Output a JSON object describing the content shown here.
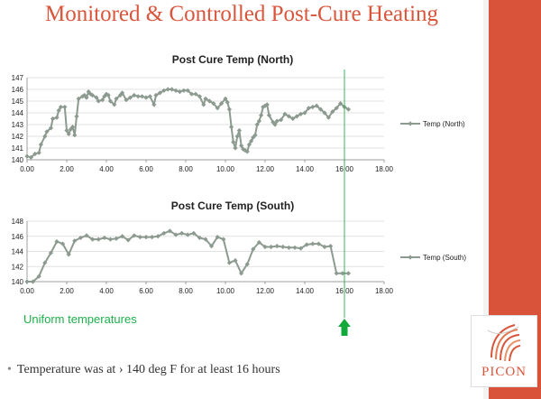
{
  "slide": {
    "title": "Monitored & Controlled Post-Cure Heating",
    "callout": "Uniform temperatures",
    "bullet": "Temperature was at › 140 deg F for at least 16 hours",
    "logo_text": "PICON",
    "accent_color": "#d9553b",
    "marker_line_color": "#1db04a",
    "marker_line_x": 16.0
  },
  "chart_data": [
    {
      "type": "line",
      "title": "Post Cure Temp (North)",
      "xlabel": "",
      "ylabel": "",
      "xlim": [
        0,
        18
      ],
      "ylim": [
        140,
        147
      ],
      "xticks": [
        "0.00",
        "2.00",
        "4.00",
        "6.00",
        "8.00",
        "10.00",
        "12.00",
        "14.00",
        "16.00",
        "18.00"
      ],
      "yticks": [
        "140",
        "141",
        "142",
        "143",
        "144",
        "145",
        "146",
        "147"
      ],
      "grid": true,
      "legend": "right",
      "series": [
        {
          "name": "Temp (North)",
          "color": "#8c9a8f",
          "x": [
            0.0,
            0.2,
            0.4,
            0.6,
            0.7,
            0.9,
            1.0,
            1.2,
            1.3,
            1.5,
            1.6,
            1.7,
            1.9,
            2.0,
            2.1,
            2.2,
            2.3,
            2.4,
            2.5,
            2.6,
            2.8,
            2.9,
            3.0,
            3.1,
            3.2,
            3.3,
            3.5,
            3.6,
            3.8,
            3.9,
            4.0,
            4.1,
            4.2,
            4.4,
            4.5,
            4.7,
            4.8,
            5.0,
            5.2,
            5.4,
            5.6,
            5.8,
            6.0,
            6.2,
            6.4,
            6.5,
            6.7,
            6.9,
            7.1,
            7.3,
            7.5,
            7.7,
            7.9,
            8.1,
            8.3,
            8.5,
            8.7,
            8.9,
            9.0,
            9.2,
            9.4,
            9.6,
            9.8,
            10.0,
            10.1,
            10.2,
            10.3,
            10.4,
            10.5,
            10.6,
            10.7,
            10.8,
            10.9,
            11.0,
            11.1,
            11.2,
            11.3,
            11.4,
            11.5,
            11.6,
            11.7,
            11.8,
            11.9,
            12.0,
            12.1,
            12.2,
            12.4,
            12.5,
            12.6,
            12.8,
            13.0,
            13.2,
            13.4,
            13.6,
            13.8,
            14.0,
            14.2,
            14.4,
            14.6,
            14.8,
            15.0,
            15.2,
            15.4,
            15.6,
            15.8,
            16.0,
            16.2
          ],
          "values": [
            140.3,
            140.2,
            140.5,
            140.6,
            141.3,
            142.0,
            142.4,
            142.7,
            143.5,
            143.6,
            144.2,
            144.5,
            144.5,
            142.5,
            142.2,
            142.6,
            142.8,
            142.1,
            143.7,
            145.2,
            145.4,
            145.5,
            145.3,
            145.8,
            145.6,
            145.5,
            145.3,
            145.0,
            145.1,
            145.4,
            145.6,
            145.5,
            145.0,
            144.7,
            145.2,
            145.5,
            145.7,
            145.1,
            145.3,
            145.5,
            145.4,
            145.4,
            145.3,
            145.4,
            144.7,
            145.5,
            145.7,
            145.9,
            146.0,
            146.0,
            145.9,
            145.8,
            145.9,
            145.9,
            145.6,
            145.6,
            145.4,
            144.7,
            145.2,
            145.0,
            144.8,
            144.4,
            144.8,
            145.2,
            144.9,
            144.3,
            142.8,
            141.5,
            141.0,
            142.0,
            142.5,
            141.2,
            140.9,
            140.8,
            140.7,
            141.3,
            141.6,
            141.9,
            142.1,
            143.0,
            143.3,
            143.8,
            144.5,
            144.6,
            144.7,
            143.8,
            143.2,
            143.0,
            143.3,
            143.4,
            143.9,
            143.7,
            143.5,
            143.7,
            143.9,
            144.0,
            144.4,
            144.5,
            144.6,
            144.3,
            144.0,
            143.6,
            144.1,
            144.4,
            144.8,
            144.5,
            144.3
          ]
        }
      ]
    },
    {
      "type": "line",
      "title": "Post Cure Temp (South)",
      "xlabel": "",
      "ylabel": "",
      "xlim": [
        0,
        18
      ],
      "ylim": [
        140,
        148
      ],
      "xticks": [
        "0.00",
        "2.00",
        "4.00",
        "6.00",
        "8.00",
        "10.00",
        "12.00",
        "14.00",
        "16.00",
        "18.00"
      ],
      "yticks": [
        "140",
        "142",
        "144",
        "146",
        "148"
      ],
      "grid": true,
      "legend": "right",
      "series": [
        {
          "name": "Temp (South)",
          "color": "#8c9a8f",
          "x": [
            0.0,
            0.3,
            0.6,
            0.9,
            1.2,
            1.5,
            1.8,
            2.1,
            2.4,
            2.7,
            3.0,
            3.3,
            3.6,
            3.9,
            4.2,
            4.5,
            4.8,
            5.1,
            5.4,
            5.7,
            6.0,
            6.3,
            6.6,
            6.9,
            7.2,
            7.5,
            7.8,
            8.1,
            8.4,
            8.7,
            9.0,
            9.3,
            9.6,
            9.9,
            10.2,
            10.5,
            10.8,
            11.1,
            11.4,
            11.7,
            12.0,
            12.3,
            12.6,
            12.9,
            13.2,
            13.5,
            13.8,
            14.1,
            14.4,
            14.7,
            15.0,
            15.3,
            15.6,
            15.9,
            16.2
          ],
          "values": [
            140.0,
            140.0,
            140.7,
            142.5,
            143.8,
            145.3,
            145.0,
            143.6,
            145.4,
            145.8,
            146.1,
            145.6,
            145.6,
            145.8,
            145.6,
            145.7,
            146.0,
            145.5,
            146.1,
            145.9,
            145.9,
            145.9,
            146.0,
            146.4,
            146.7,
            146.2,
            146.4,
            146.2,
            146.4,
            145.8,
            145.6,
            144.7,
            145.9,
            145.6,
            142.5,
            142.8,
            141.1,
            142.3,
            144.3,
            145.2,
            144.6,
            144.6,
            144.7,
            144.6,
            144.5,
            144.5,
            144.4,
            144.9,
            145.0,
            145.0,
            144.6,
            144.7,
            141.1,
            141.1,
            141.1
          ]
        }
      ]
    }
  ]
}
